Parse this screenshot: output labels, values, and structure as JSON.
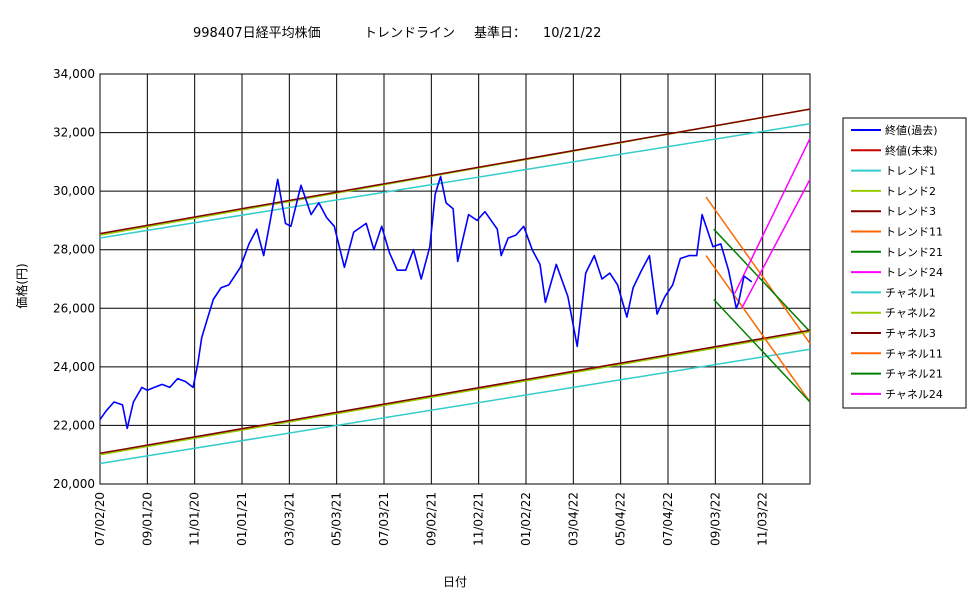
{
  "chart_data": {
    "type": "line",
    "title": {
      "code_name": "998407日経平均株価",
      "subtitle": "トレンドライン",
      "base_date_label": "基準日：",
      "base_date": "10/21/22"
    },
    "xlabel": "日付",
    "ylabel": "価格(円)",
    "x_range": [
      "07/02/20",
      "01/03/23"
    ],
    "ylim": [
      20000,
      34000
    ],
    "y_ticks": [
      "20,000",
      "22,000",
      "24,000",
      "26,000",
      "28,000",
      "30,000",
      "32,000",
      "34,000"
    ],
    "x_ticks": [
      "07/02/20",
      "09/01/20",
      "11/01/20",
      "01/01/21",
      "03/03/21",
      "05/03/21",
      "07/03/21",
      "09/02/21",
      "11/02/21",
      "01/02/22",
      "03/04/22",
      "05/04/22",
      "07/04/22",
      "09/03/22",
      "11/03/22"
    ],
    "grid": true,
    "legend_position": "right",
    "series": [
      {
        "name": "終値(過去)",
        "color": "#0000ff",
        "kind": "price",
        "points": [
          [
            "07/02/20",
            22200
          ],
          [
            "07/10/20",
            22500
          ],
          [
            "07/20/20",
            22800
          ],
          [
            "07/31/20",
            22700
          ],
          [
            "08/06/20",
            21900
          ],
          [
            "08/14/20",
            22800
          ],
          [
            "08/25/20",
            23300
          ],
          [
            "09/01/20",
            23200
          ],
          [
            "09/10/20",
            23300
          ],
          [
            "09/20/20",
            23400
          ],
          [
            "09/30/20",
            23300
          ],
          [
            "10/10/20",
            23600
          ],
          [
            "10/20/20",
            23500
          ],
          [
            "10/30/20",
            23300
          ],
          [
            "11/05/20",
            24100
          ],
          [
            "11/10/20",
            25000
          ],
          [
            "11/18/20",
            25700
          ],
          [
            "11/25/20",
            26300
          ],
          [
            "12/05/20",
            26700
          ],
          [
            "12/15/20",
            26800
          ],
          [
            "12/30/20",
            27400
          ],
          [
            "01/10/21",
            28200
          ],
          [
            "01/20/21",
            28700
          ],
          [
            "01/29/21",
            27800
          ],
          [
            "02/05/21",
            28800
          ],
          [
            "02/16/21",
            30400
          ],
          [
            "02/26/21",
            28900
          ],
          [
            "03/05/21",
            28800
          ],
          [
            "03/18/21",
            30200
          ],
          [
            "03/31/21",
            29200
          ],
          [
            "04/10/21",
            29600
          ],
          [
            "04/20/21",
            29100
          ],
          [
            "04/30/21",
            28800
          ],
          [
            "05/13/21",
            27400
          ],
          [
            "05/25/21",
            28600
          ],
          [
            "06/10/21",
            28900
          ],
          [
            "06/20/21",
            28000
          ],
          [
            "06/30/21",
            28800
          ],
          [
            "07/10/21",
            27900
          ],
          [
            "07/20/21",
            27300
          ],
          [
            "07/31/21",
            27300
          ],
          [
            "08/10/21",
            28000
          ],
          [
            "08/20/21",
            27000
          ],
          [
            "08/31/21",
            28100
          ],
          [
            "09/07/21",
            29900
          ],
          [
            "09/14/21",
            30500
          ],
          [
            "09/21/21",
            29600
          ],
          [
            "09/30/21",
            29400
          ],
          [
            "10/06/21",
            27600
          ],
          [
            "10/20/21",
            29200
          ],
          [
            "10/31/21",
            29000
          ],
          [
            "11/10/21",
            29300
          ],
          [
            "11/26/21",
            28700
          ],
          [
            "12/01/21",
            27800
          ],
          [
            "12/10/21",
            28400
          ],
          [
            "12/20/21",
            28500
          ],
          [
            "12/30/21",
            28800
          ],
          [
            "01/10/22",
            28000
          ],
          [
            "01/20/22",
            27500
          ],
          [
            "01/27/22",
            26200
          ],
          [
            "02/10/22",
            27500
          ],
          [
            "02/25/22",
            26400
          ],
          [
            "03/09/22",
            24700
          ],
          [
            "03/20/22",
            27200
          ],
          [
            "03/31/22",
            27800
          ],
          [
            "04/10/22",
            27000
          ],
          [
            "04/20/22",
            27200
          ],
          [
            "04/30/22",
            26800
          ],
          [
            "05/12/22",
            25700
          ],
          [
            "05/20/22",
            26700
          ],
          [
            "05/31/22",
            27300
          ],
          [
            "06/10/22",
            27800
          ],
          [
            "06/20/22",
            25800
          ],
          [
            "06/30/22",
            26400
          ],
          [
            "07/10/22",
            26800
          ],
          [
            "07/20/22",
            27700
          ],
          [
            "07/31/22",
            27800
          ],
          [
            "08/10/22",
            27800
          ],
          [
            "08/17/22",
            29200
          ],
          [
            "08/31/22",
            28100
          ],
          [
            "09/10/22",
            28200
          ],
          [
            "09/20/22",
            27300
          ],
          [
            "09/30/22",
            26000
          ],
          [
            "10/03/22",
            26200
          ],
          [
            "10/10/22",
            27100
          ],
          [
            "10/20/22",
            26900
          ]
        ]
      },
      {
        "name": "終値(未来)",
        "color": "#cc0000",
        "kind": "none"
      },
      {
        "name": "トレンド1",
        "color": "#33cccc",
        "kind": "line",
        "points": [
          [
            "07/02/20",
            28400
          ],
          [
            "01/03/23",
            32300
          ]
        ]
      },
      {
        "name": "トレンド2",
        "color": "#99cc00",
        "kind": "line",
        "points": [
          [
            "07/02/20",
            28500
          ],
          [
            "01/03/23",
            32800
          ]
        ]
      },
      {
        "name": "トレンド3",
        "color": "#800000",
        "kind": "line",
        "points": [
          [
            "07/02/20",
            28550
          ],
          [
            "01/03/23",
            32800
          ]
        ]
      },
      {
        "name": "トレンド11",
        "color": "#ff6600",
        "kind": "line",
        "points": [
          [
            "08/22/22",
            29800
          ],
          [
            "01/03/23",
            24800
          ]
        ]
      },
      {
        "name": "トレンド21",
        "color": "#008000",
        "kind": "line",
        "points": [
          [
            "09/01/22",
            28700
          ],
          [
            "01/03/23",
            25200
          ]
        ]
      },
      {
        "name": "トレンド24",
        "color": "#ff00ff",
        "kind": "line",
        "points": [
          [
            "09/28/22",
            26500
          ],
          [
            "01/03/23",
            31800
          ]
        ]
      },
      {
        "name": "チャネル1",
        "color": "#33cccc",
        "kind": "line",
        "points": [
          [
            "07/02/20",
            20700
          ],
          [
            "01/03/23",
            24600
          ]
        ]
      },
      {
        "name": "チャネル2",
        "color": "#99cc00",
        "kind": "line",
        "points": [
          [
            "07/02/20",
            21000
          ],
          [
            "01/03/23",
            25200
          ]
        ]
      },
      {
        "name": "チャネル3",
        "color": "#800000",
        "kind": "line",
        "points": [
          [
            "07/02/20",
            21050
          ],
          [
            "01/03/23",
            25250
          ]
        ]
      },
      {
        "name": "チャネル11",
        "color": "#ff6600",
        "kind": "line",
        "points": [
          [
            "08/22/22",
            27800
          ],
          [
            "01/03/23",
            22800
          ]
        ]
      },
      {
        "name": "チャネル21",
        "color": "#008000",
        "kind": "line",
        "points": [
          [
            "09/01/22",
            26300
          ],
          [
            "01/03/23",
            22800
          ]
        ]
      },
      {
        "name": "チャネル24",
        "color": "#ff00ff",
        "kind": "line",
        "points": [
          [
            "10/07/22",
            26000
          ],
          [
            "01/03/23",
            30400
          ]
        ]
      }
    ]
  }
}
